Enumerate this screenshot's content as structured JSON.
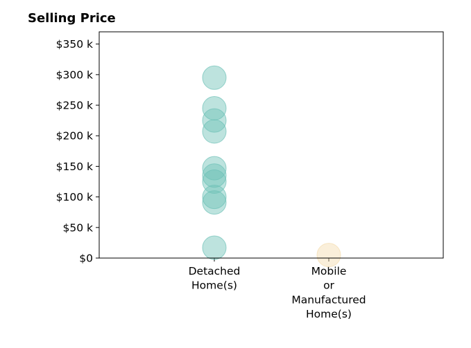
{
  "chart_data": {
    "type": "scatter",
    "title": "Selling Price",
    "xlabel": "",
    "ylabel": "",
    "ylim": [
      0,
      370000
    ],
    "y_ticks": [
      {
        "value": 0,
        "label": "$0"
      },
      {
        "value": 50000,
        "label": "$50 k"
      },
      {
        "value": 100000,
        "label": "$100 k"
      },
      {
        "value": 150000,
        "label": "$150 k"
      },
      {
        "value": 200000,
        "label": "$200 k"
      },
      {
        "value": 250000,
        "label": "$250 k"
      },
      {
        "value": 300000,
        "label": "$300 k"
      },
      {
        "value": 350000,
        "label": "$350 k"
      }
    ],
    "categories": [
      {
        "label_lines": [
          "Detached",
          "Home(s)"
        ],
        "color": "#6cc0b6"
      },
      {
        "label_lines": [
          "Mobile",
          "or",
          "Manufactured",
          "Home(s)"
        ],
        "color": "#f3dcae"
      }
    ],
    "points": [
      {
        "category": 0,
        "y": 295000
      },
      {
        "category": 0,
        "y": 245000
      },
      {
        "category": 0,
        "y": 225000
      },
      {
        "category": 0,
        "y": 207000
      },
      {
        "category": 0,
        "y": 147000
      },
      {
        "category": 0,
        "y": 135000
      },
      {
        "category": 0,
        "y": 125000
      },
      {
        "category": 0,
        "y": 100000
      },
      {
        "category": 0,
        "y": 91000
      },
      {
        "category": 0,
        "y": 17000
      },
      {
        "category": 1,
        "y": 5000
      }
    ]
  }
}
